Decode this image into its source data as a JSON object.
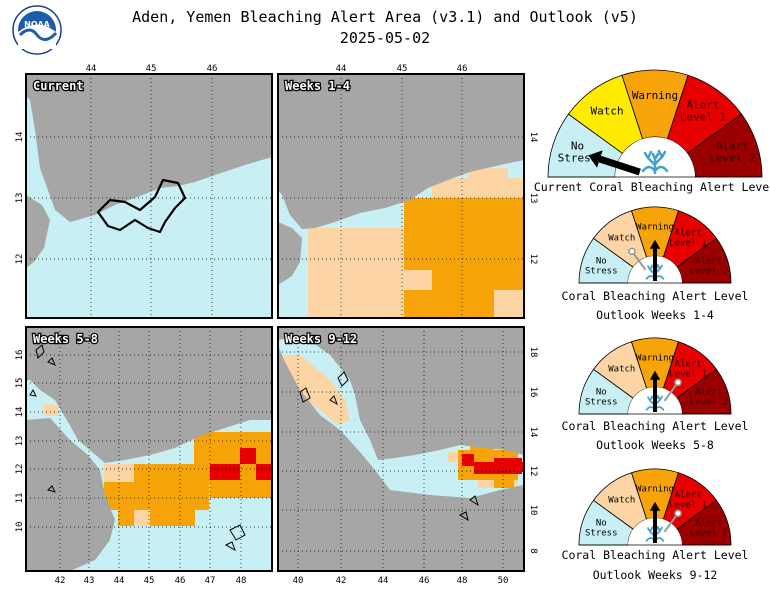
{
  "title": "Aden, Yemen Bleaching Alert Area (v3.1) and Outlook (v5)",
  "date": "2025-05-02",
  "logo_text": "NOAA",
  "colors": {
    "no_stress": "#c8f0f4",
    "watch": "#ffeb00",
    "warning": "#f7a30a",
    "alert1": "#e60000",
    "alert2": "#9b0000",
    "outlook_watch": "#fdd5a5",
    "land": "#a6a6a6",
    "coral": "#3fa3cc"
  },
  "chart_data": [
    {
      "type": "heatmap",
      "panel_label": "Current",
      "xticks": [
        "44",
        "45",
        "46"
      ],
      "yticks": [
        "14",
        "13",
        "12"
      ],
      "description_categories": [
        "No Stress"
      ]
    },
    {
      "type": "heatmap",
      "panel_label": "Weeks 1-4",
      "xticks": [
        "44",
        "45",
        "46"
      ],
      "yticks": [
        "14",
        "13",
        "12"
      ],
      "categories_shown": [
        "No Stress",
        "Watch",
        "Warning"
      ]
    },
    {
      "type": "heatmap",
      "panel_label": "Weeks 5-8",
      "xticks": [
        "42",
        "43",
        "44",
        "45",
        "46",
        "47",
        "48"
      ],
      "yticks": [
        "16",
        "15",
        "14",
        "13",
        "12",
        "11",
        "10"
      ],
      "categories_shown": [
        "No Stress",
        "Watch",
        "Warning",
        "Alert Level 1"
      ]
    },
    {
      "type": "heatmap",
      "panel_label": "Weeks 9-12",
      "xticks": [
        "40",
        "42",
        "44",
        "46",
        "48",
        "50"
      ],
      "yticks": [
        "18",
        "16",
        "14",
        "12",
        "10",
        "8"
      ],
      "categories_shown": [
        "No Stress",
        "Watch",
        "Warning",
        "Alert Level 1"
      ]
    }
  ],
  "gauges": {
    "labels": {
      "no_stress": [
        "No",
        "Stress"
      ],
      "watch": "Watch",
      "warning": "Warning",
      "alert1": [
        "Alert",
        "Level 1"
      ],
      "alert2": [
        "Alert",
        "Level 2"
      ]
    },
    "items": [
      {
        "caption": [
          "Current Coral Bleaching Alert Level"
        ],
        "level": "No Stress",
        "pointer": 0.1,
        "secondary": null,
        "large": true
      },
      {
        "caption": [
          "Coral Bleaching Alert Level",
          "Outlook Weeks 1-4"
        ],
        "level": "Warning",
        "pointer": 0.5,
        "secondary": 0.3,
        "large": false
      },
      {
        "caption": [
          "Coral Bleaching Alert Level",
          "Outlook Weeks 5-8"
        ],
        "level": "Warning",
        "pointer": 0.5,
        "secondary": 0.7,
        "large": false
      },
      {
        "caption": [
          "Coral Bleaching Alert Level",
          "Outlook Weeks 9-12"
        ],
        "level": "Warning",
        "pointer": 0.5,
        "secondary": 0.7,
        "large": false
      }
    ]
  }
}
